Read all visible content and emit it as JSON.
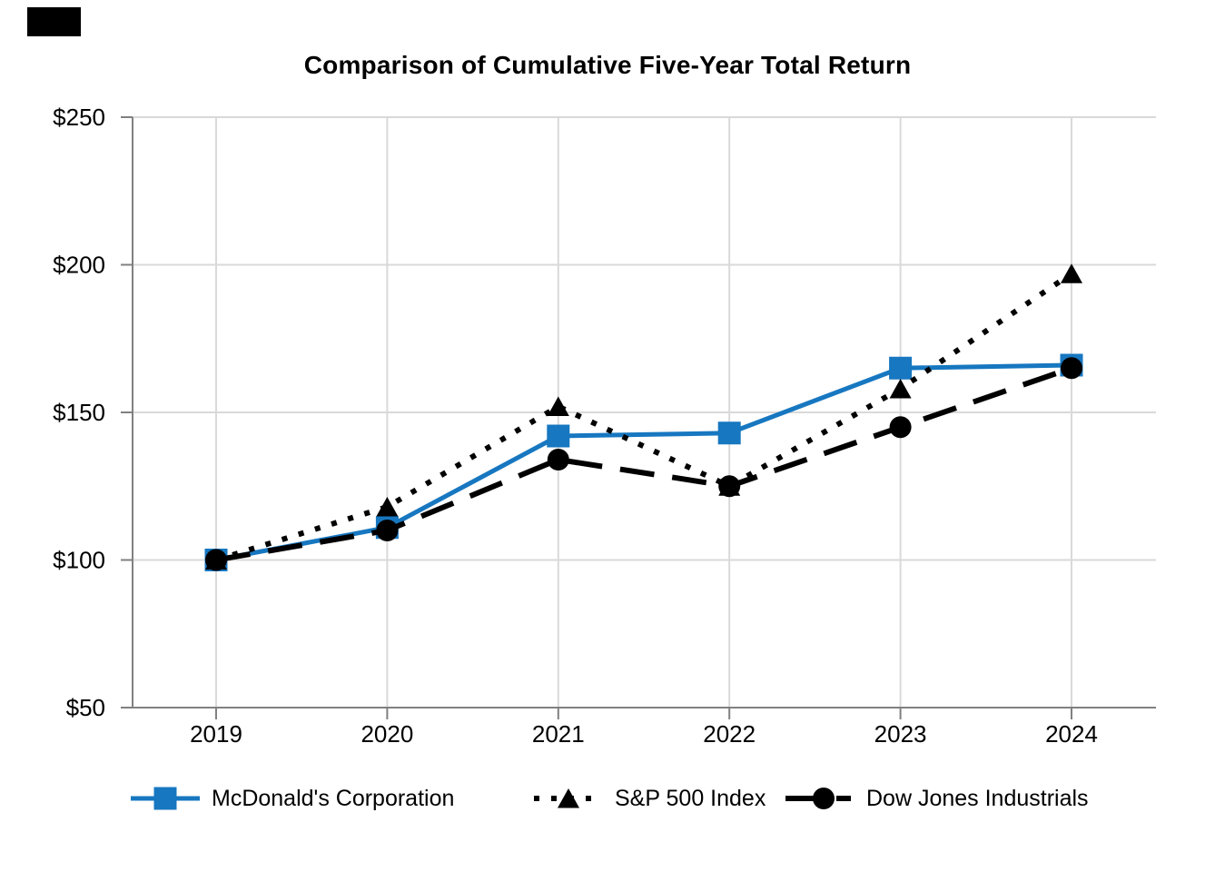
{
  "chart_data": {
    "type": "line",
    "title": "Comparison of Cumulative Five-Year Total Return",
    "x_categories": [
      "2019",
      "2020",
      "2021",
      "2022",
      "2023",
      "2024"
    ],
    "y_tick_values": [
      50,
      100,
      150,
      200,
      250
    ],
    "y_tick_labels": [
      "$50",
      "$100",
      "$150",
      "$200",
      "$250"
    ],
    "ylim": [
      50,
      250
    ],
    "grid": true,
    "legend_position": "bottom",
    "axis_color": "#808080",
    "grid_color": "#d9d9d9",
    "text_color": "#000000",
    "accent_color": "#1777c0",
    "series": [
      {
        "name": "McDonald's Corporation",
        "color": "#1777c0",
        "marker": "square",
        "line_style": "solid",
        "values": [
          100,
          111,
          142,
          143,
          165,
          166
        ]
      },
      {
        "name": "S&P 500 Index",
        "color": "#000000",
        "marker": "triangle",
        "line_style": "dotted",
        "values": [
          100,
          118,
          152,
          125,
          158,
          197
        ]
      },
      {
        "name": "Dow Jones Industrials",
        "color": "#000000",
        "marker": "circle",
        "line_style": "dashed",
        "values": [
          100,
          110,
          134,
          125,
          145,
          165
        ]
      }
    ]
  }
}
